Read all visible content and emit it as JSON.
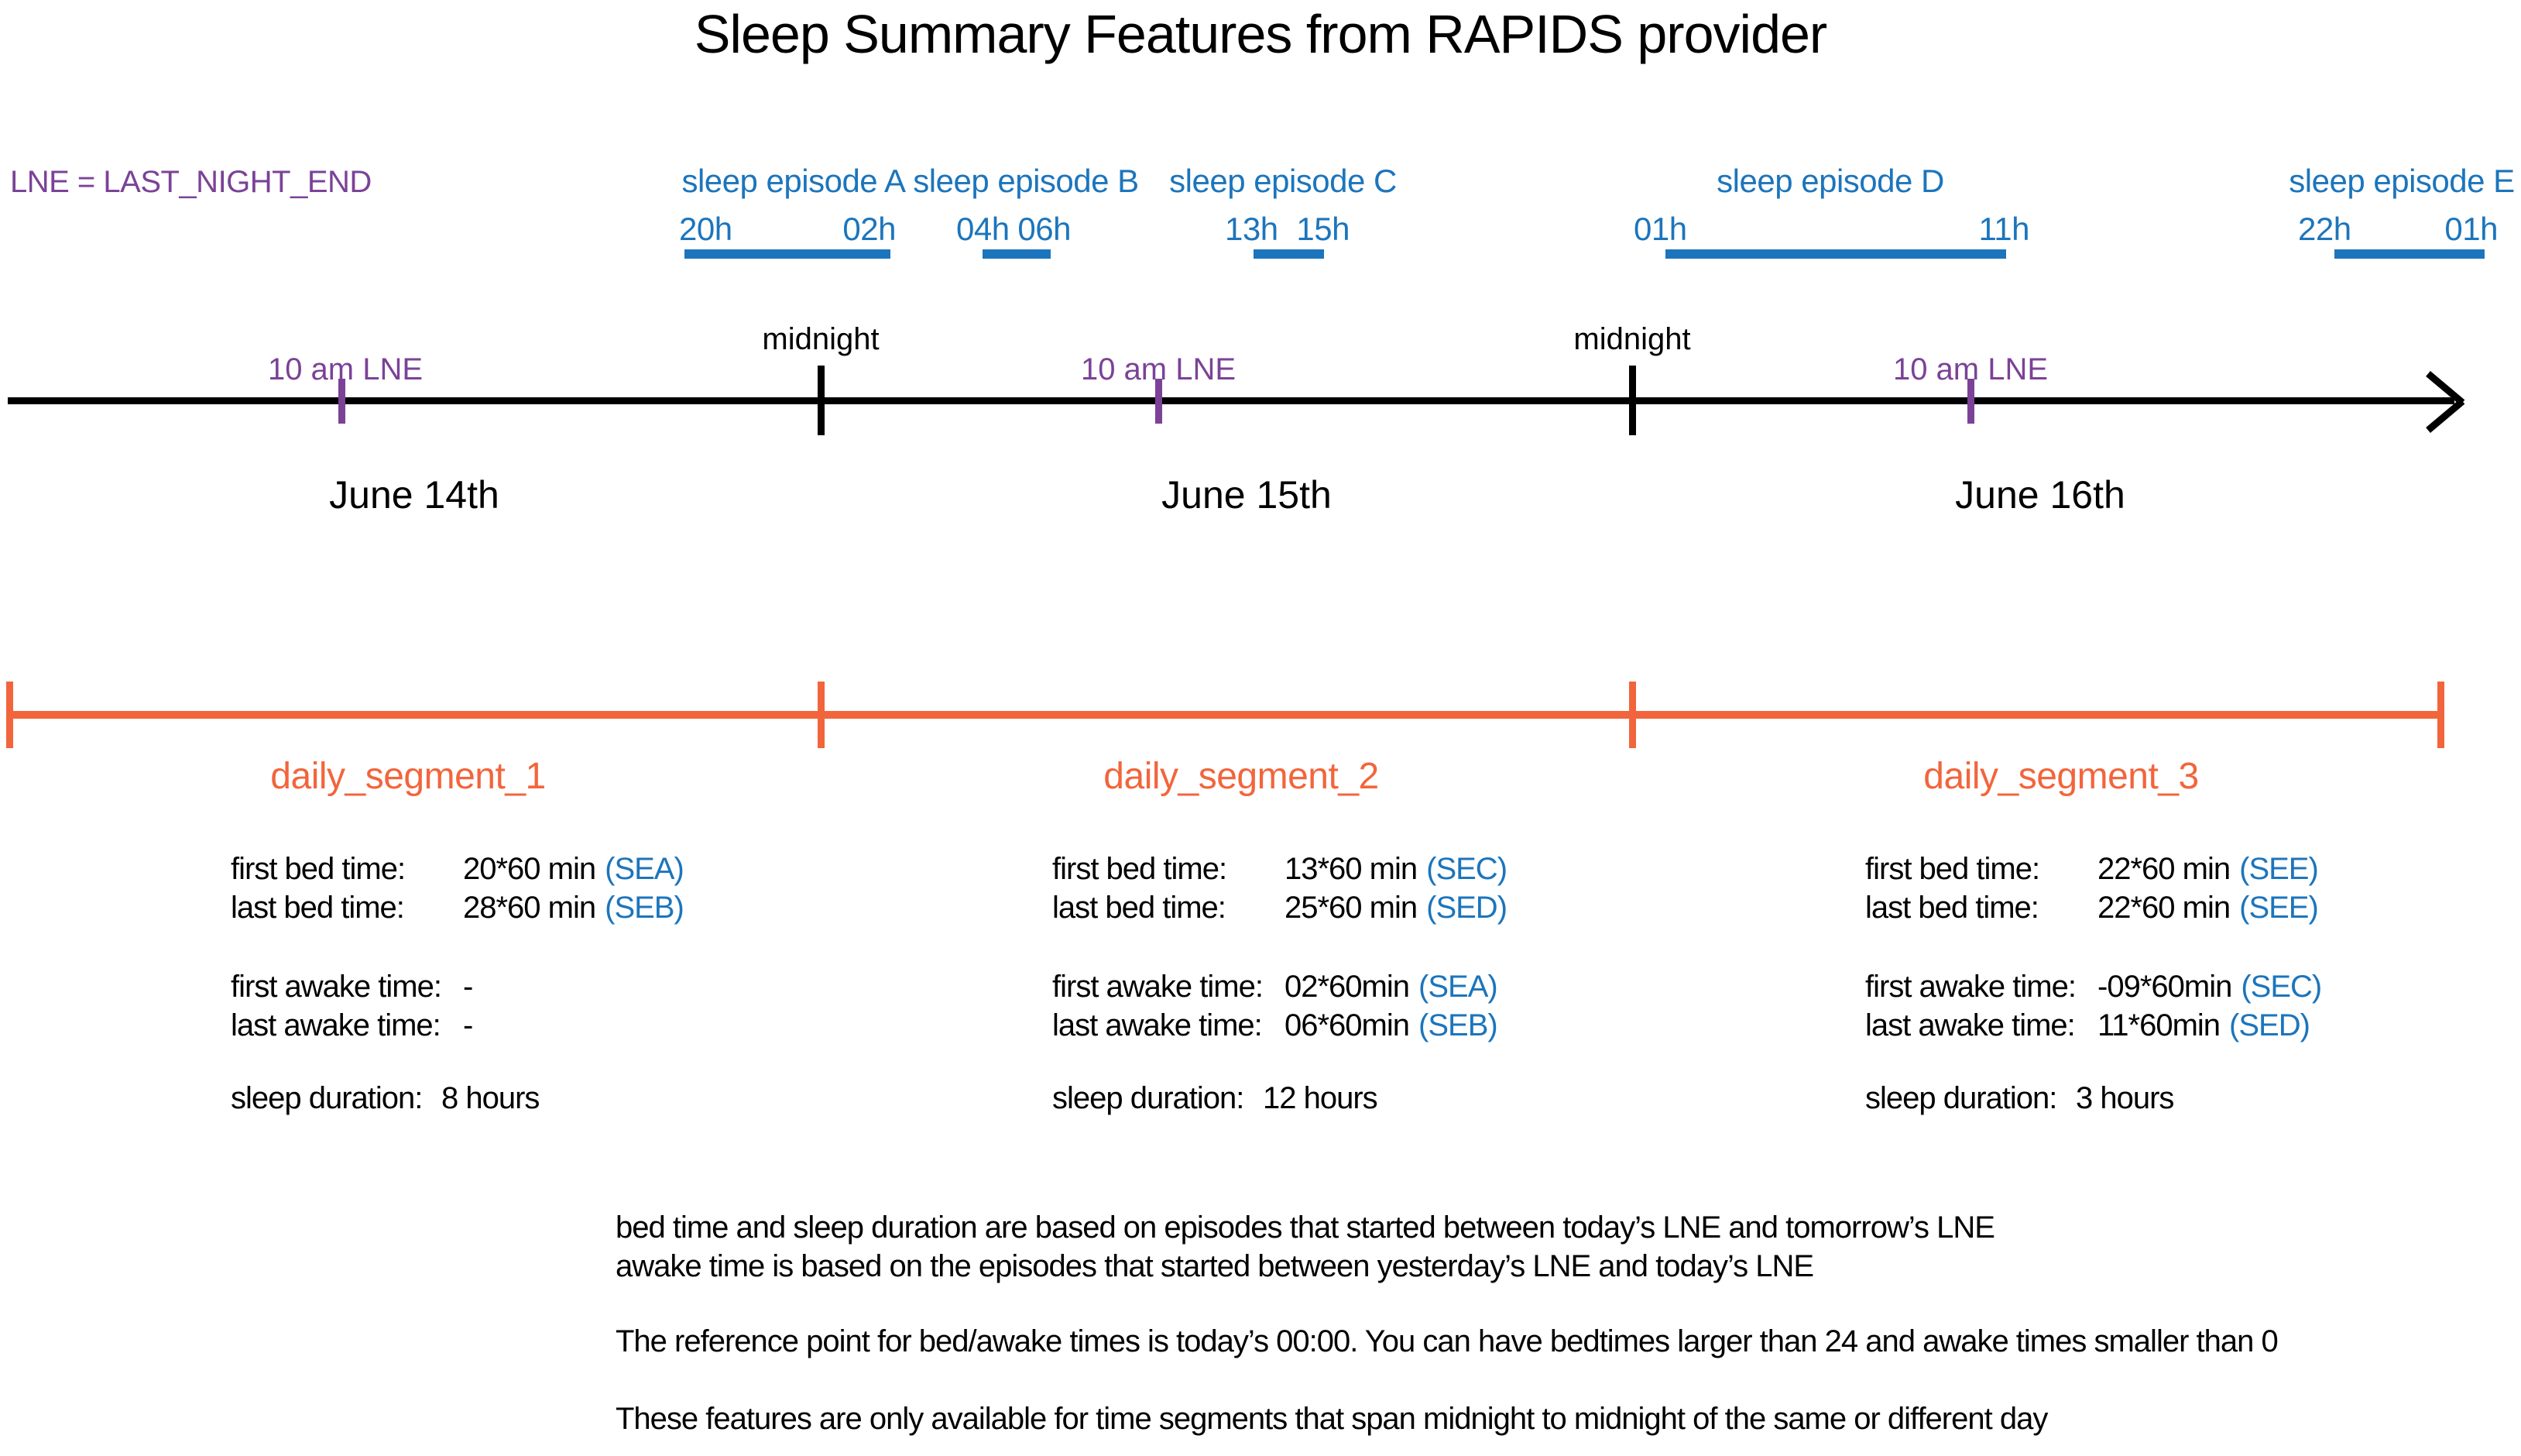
{
  "title": "Sleep Summary Features from RAPIDS provider",
  "lne_legend": "LNE = LAST_NIGHT_END",
  "colors": {
    "episode_blue": "#1C75BC",
    "lne_purple": "#7B4297",
    "segment_orange": "#F2653C",
    "axis_black": "#000000"
  },
  "episodes": [
    {
      "label": "sleep episode A",
      "start": "20h",
      "end": "02h"
    },
    {
      "label": "sleep episode B",
      "start": "04h",
      "end": "06h"
    },
    {
      "label": "sleep episode C",
      "start": "13h",
      "end": "15h"
    },
    {
      "label": "sleep episode D",
      "start": "01h",
      "end": "11h"
    },
    {
      "label": "sleep episode E",
      "start": "22h",
      "end": "01h"
    }
  ],
  "timeline": {
    "midnights": [
      "midnight",
      "midnight"
    ],
    "lne_marks": [
      "10 am LNE",
      "10 am LNE",
      "10 am LNE"
    ],
    "dates": [
      "June 14th",
      "June 15th",
      "June 16th"
    ]
  },
  "segments": [
    {
      "title": "daily_segment_1",
      "rows": [
        {
          "label": "first bed time:",
          "value": "20*60 min",
          "ref": "(SEA)"
        },
        {
          "label": "last bed time:",
          "value": "28*60 min",
          "ref": "(SEB)"
        },
        {
          "label": "first awake time:",
          "value": "-",
          "ref": ""
        },
        {
          "label": "last awake time:",
          "value": "-",
          "ref": ""
        }
      ],
      "duration_label": "sleep duration:",
      "duration_value": "8 hours"
    },
    {
      "title": "daily_segment_2",
      "rows": [
        {
          "label": "first bed time:",
          "value": "13*60 min",
          "ref": "(SEC)"
        },
        {
          "label": "last bed time:",
          "value": "25*60 min",
          "ref": "(SED)"
        },
        {
          "label": "first awake time:",
          "value": "02*60min",
          "ref": "(SEA)"
        },
        {
          "label": "last awake time:",
          "value": "06*60min",
          "ref": "(SEB)"
        }
      ],
      "duration_label": "sleep duration:",
      "duration_value": "12 hours"
    },
    {
      "title": "daily_segment_3",
      "rows": [
        {
          "label": "first bed time:",
          "value": "22*60 min",
          "ref": "(SEE)"
        },
        {
          "label": "last bed time:",
          "value": "22*60 min",
          "ref": "(SEE)"
        },
        {
          "label": "first awake time:",
          "value": "-09*60min",
          "ref": "(SEC)"
        },
        {
          "label": "last awake time:",
          "value": "11*60min",
          "ref": "(SED)"
        }
      ],
      "duration_label": "sleep duration:",
      "duration_value": "3 hours"
    }
  ],
  "notes": [
    "bed time and sleep duration are based on episodes that started between today’s LNE and tomorrow’s LNE",
    "awake time is based on the episodes that started between yesterday’s LNE and today’s LNE",
    "The reference point for bed/awake times is today’s 00:00. You can have bedtimes larger than 24 and awake times smaller than 0",
    "These features are only available for time segments that span midnight to midnight of the same or different day"
  ]
}
